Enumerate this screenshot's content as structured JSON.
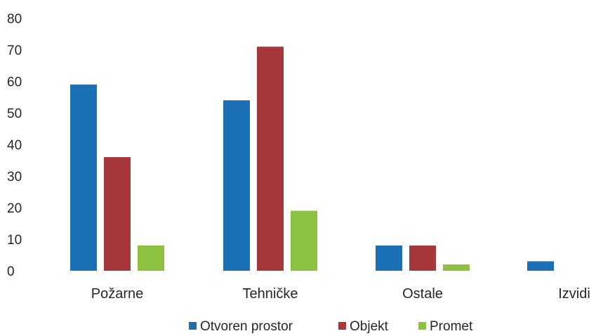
{
  "chart_data": {
    "type": "bar",
    "title": "",
    "xlabel": "",
    "ylabel": "",
    "categories": [
      "Požarne",
      "Tehničke",
      "Ostale",
      "Izvidi"
    ],
    "series": [
      {
        "name": "Otvoren prostor",
        "color": "#1a6fb5",
        "values": [
          59,
          54,
          8,
          3
        ]
      },
      {
        "name": "Objekt",
        "color": "#a8373c",
        "values": [
          36,
          71,
          8,
          0
        ]
      },
      {
        "name": "Promet",
        "color": "#8dc140",
        "values": [
          8,
          19,
          2,
          0
        ]
      }
    ],
    "ylim": [
      0,
      80
    ],
    "yticks": [
      "0",
      "10",
      "20",
      "30",
      "40",
      "50",
      "60",
      "70",
      "80"
    ],
    "grid": false,
    "legend_position": "bottom"
  }
}
